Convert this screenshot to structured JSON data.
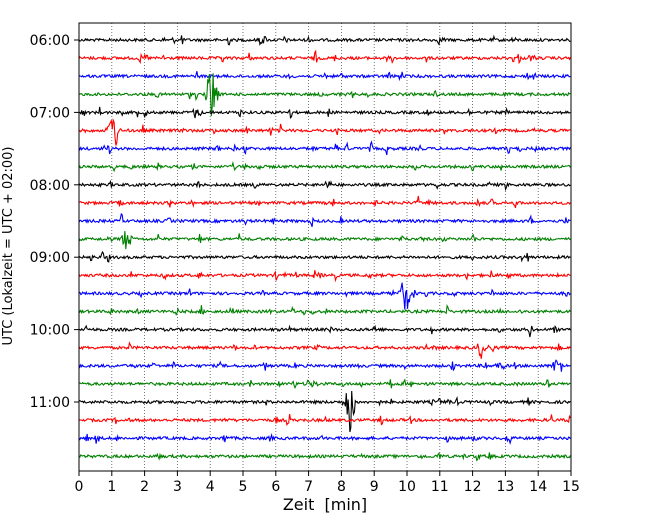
{
  "chart_data": {
    "type": "line",
    "subtype": "seismogram-helicorder",
    "title": "",
    "xlabel": "Zeit  [min]",
    "ylabel": "UTC (Lokalzeit = UTC + 02:00)",
    "xlim": [
      0,
      15
    ],
    "x_ticks": [
      "0",
      "1",
      "2",
      "3",
      "4",
      "5",
      "6",
      "7",
      "8",
      "9",
      "10",
      "11",
      "12",
      "13",
      "14",
      "15"
    ],
    "grid": "vertical dotted at each minute",
    "line_interval_min": 15,
    "y_ticks": [
      {
        "label": "06:00",
        "line": 0
      },
      {
        "label": "07:00",
        "line": 4
      },
      {
        "label": "08:00",
        "line": 8
      },
      {
        "label": "09:00",
        "line": 12
      },
      {
        "label": "10:00",
        "line": 16
      },
      {
        "label": "11:00",
        "line": 20
      }
    ],
    "trace_colors": [
      "#000000",
      "#ff0000",
      "#0000ff",
      "#008000"
    ],
    "trace_count": 24,
    "notable_events": [
      {
        "line": 3,
        "minute": 4.05,
        "amplitude": 2.5
      },
      {
        "line": 5,
        "minute": 1.05,
        "amplitude": 1.6
      },
      {
        "line": 14,
        "minute": 9.95,
        "amplitude": 1.4
      },
      {
        "line": 20,
        "minute": 8.25,
        "amplitude": 2.5
      },
      {
        "line": 11,
        "minute": 1.45,
        "amplitude": 0.8
      },
      {
        "line": 17,
        "minute": 12.3,
        "amplitude": 0.9
      },
      {
        "line": 18,
        "minute": 14.6,
        "amplitude": 0.7
      }
    ]
  }
}
